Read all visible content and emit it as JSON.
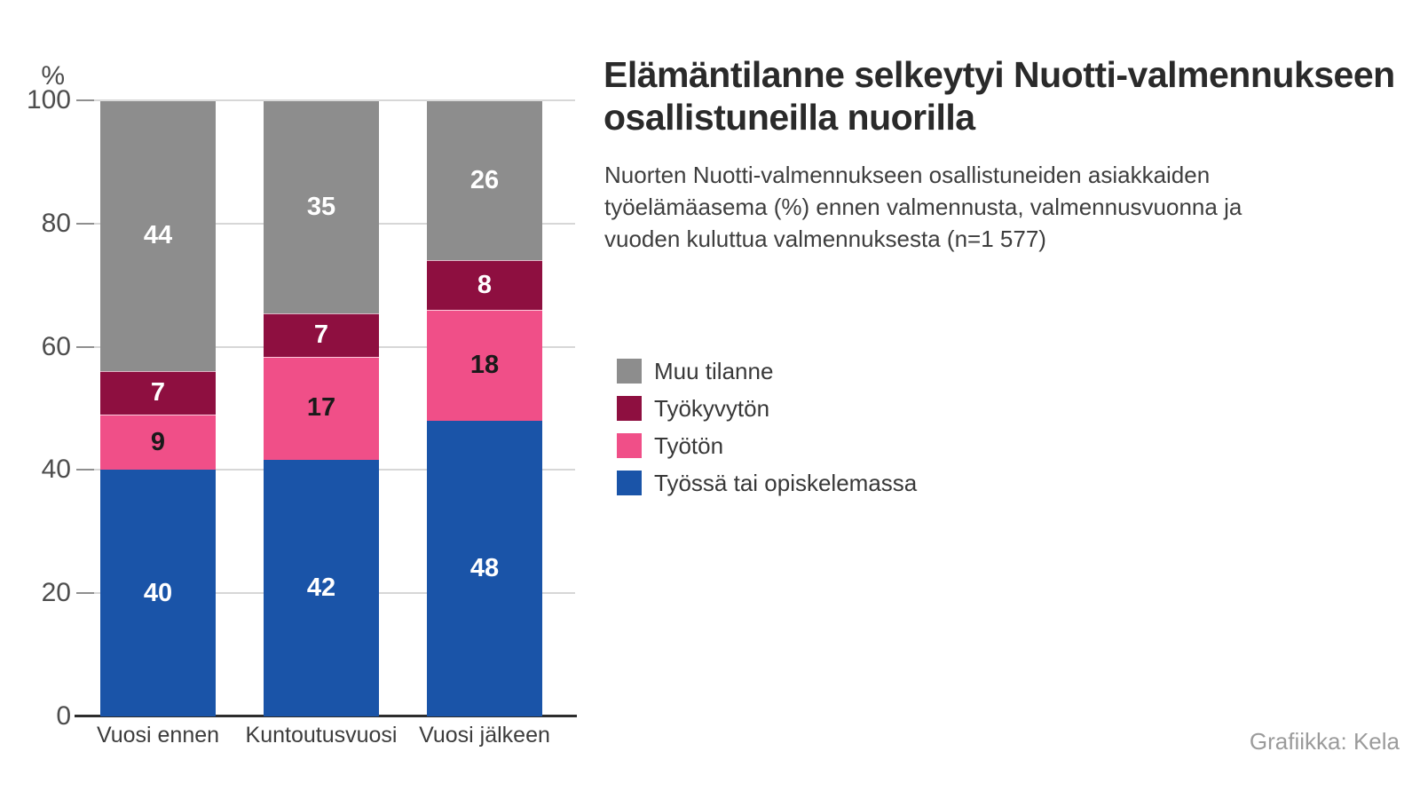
{
  "page": {
    "background": "#ffffff"
  },
  "header": {
    "title": "Elämäntilanne selkeytyi Nuotti-valmennukseen\nosallistuneilla nuorilla",
    "subtitle": "Nuorten Nuotti-valmennukseen osallistuneiden asiakkaiden\ntyöelämäasema (%) ennen valmennusta, valmennusvuonna ja\nvuoden kuluttua valmennuksesta (n=1 577)"
  },
  "chart_data": {
    "type": "bar",
    "stacked": true,
    "gridlines": true,
    "legend_position": "right-of-plot",
    "categories": [
      "Vuosi ennen",
      "Kuntoutusvuosi",
      "Vuosi jälkeen"
    ],
    "series": [
      {
        "name": "Työssä tai opiskelemassa",
        "color": "#1a54a8",
        "values": [
          40,
          42,
          48
        ],
        "value_label_color": "#ffffff"
      },
      {
        "name": "Työtön",
        "color": "#f04f88",
        "values": [
          9,
          17,
          18
        ],
        "value_label_color": "#1a1a1a"
      },
      {
        "name": "Työkyvytön",
        "color": "#8e0f40",
        "values": [
          7,
          7,
          8
        ],
        "value_label_color": "#ffffff"
      },
      {
        "name": "Muu tilanne",
        "color": "#8d8d8d",
        "values": [
          44,
          35,
          26
        ],
        "value_label_color": "#ffffff"
      }
    ],
    "y_axis": {
      "unit_label": "%",
      "ticks": [
        0,
        20,
        40,
        60,
        80,
        100
      ],
      "range": [
        0,
        100
      ]
    }
  },
  "legend": {
    "items": [
      {
        "label": "Muu tilanne",
        "color": "#8d8d8d"
      },
      {
        "label": "Työkyvytön",
        "color": "#8e0f40"
      },
      {
        "label": "Työtön",
        "color": "#f04f88"
      },
      {
        "label": "Työssä tai opiskelemassa",
        "color": "#1a54a8"
      }
    ]
  },
  "footer": {
    "credit": "Grafiikka: Kela"
  },
  "colors": {
    "gridline": "#d7d7d7",
    "tick": "#8f8f8f",
    "axis_line": "#2d2d2d",
    "title_text": "#2a2a2a",
    "body_text": "#3e3e3e",
    "muted_text": "#9b9b9b"
  }
}
